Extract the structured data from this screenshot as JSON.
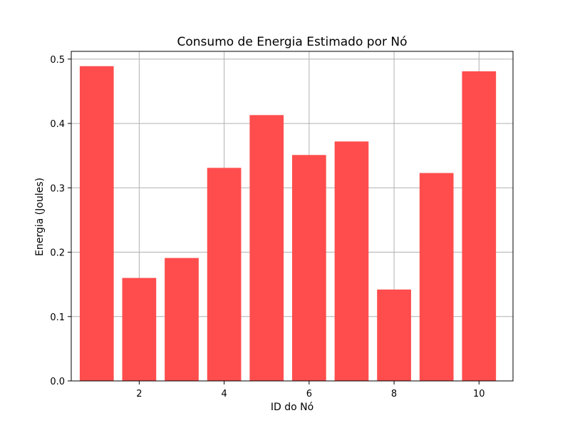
{
  "chart_data": {
    "type": "bar",
    "title": "Consumo de Energia Estimado por Nó",
    "xlabel": "ID do Nó",
    "ylabel": "Energia (Joules)",
    "x": [
      1,
      2,
      3,
      4,
      5,
      6,
      7,
      8,
      9,
      10
    ],
    "values": [
      0.489,
      0.16,
      0.191,
      0.331,
      0.413,
      0.351,
      0.372,
      0.142,
      0.323,
      0.481
    ],
    "xlim": [
      0.4,
      10.8
    ],
    "ylim": [
      0,
      0.512
    ],
    "xticks": [
      2,
      4,
      6,
      8,
      10
    ],
    "yticks": [
      0.0,
      0.1,
      0.2,
      0.3,
      0.4,
      0.5
    ],
    "ytick_labels": [
      "0.0",
      "0.1",
      "0.2",
      "0.3",
      "0.4",
      "0.5"
    ],
    "bar_color": "#ff4d4d",
    "grid": true,
    "legend": "none"
  }
}
